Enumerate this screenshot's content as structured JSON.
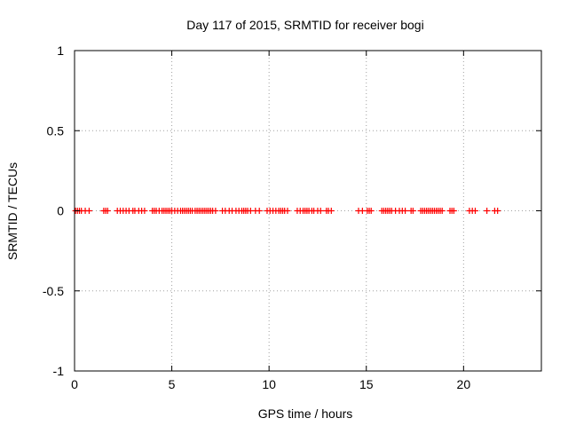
{
  "chart_data": {
    "type": "scatter",
    "title": "Day 117 of 2015, SRMTID for receiver bogi",
    "xlabel": "GPS time / hours",
    "ylabel": "SRMTID / TECUs",
    "xlim": [
      0,
      24
    ],
    "ylim": [
      -1,
      1
    ],
    "xticks": [
      0,
      5,
      10,
      15,
      20
    ],
    "yticks": [
      -1,
      -0.5,
      0,
      0.5,
      1
    ],
    "xtick_labels": [
      "0",
      "5",
      "10",
      "15",
      "20"
    ],
    "ytick_labels": [
      "-1",
      "-0.5",
      "0",
      "0.5",
      "1"
    ],
    "grid": true,
    "marker": "+",
    "series": [
      {
        "name": "SRMTID",
        "color": "#ff0000",
        "points": [
          [
            0.05,
            0
          ],
          [
            0.15,
            0
          ],
          [
            0.25,
            0
          ],
          [
            0.35,
            0
          ],
          [
            0.55,
            0
          ],
          [
            0.75,
            0
          ],
          [
            1.5,
            0
          ],
          [
            1.6,
            0
          ],
          [
            1.7,
            0
          ],
          [
            2.2,
            0
          ],
          [
            2.35,
            0
          ],
          [
            2.5,
            0
          ],
          [
            2.65,
            0
          ],
          [
            2.8,
            0
          ],
          [
            3.0,
            0
          ],
          [
            3.1,
            0
          ],
          [
            3.3,
            0
          ],
          [
            3.45,
            0
          ],
          [
            3.6,
            0
          ],
          [
            4.0,
            0
          ],
          [
            4.1,
            0
          ],
          [
            4.2,
            0
          ],
          [
            4.35,
            0
          ],
          [
            4.5,
            0
          ],
          [
            4.6,
            0
          ],
          [
            4.7,
            0
          ],
          [
            4.8,
            0
          ],
          [
            4.9,
            0
          ],
          [
            5.0,
            0
          ],
          [
            5.15,
            0
          ],
          [
            5.3,
            0
          ],
          [
            5.45,
            0
          ],
          [
            5.55,
            0
          ],
          [
            5.65,
            0
          ],
          [
            5.75,
            0
          ],
          [
            5.85,
            0
          ],
          [
            5.95,
            0
          ],
          [
            6.05,
            0
          ],
          [
            6.2,
            0
          ],
          [
            6.3,
            0
          ],
          [
            6.4,
            0
          ],
          [
            6.5,
            0
          ],
          [
            6.6,
            0
          ],
          [
            6.7,
            0
          ],
          [
            6.8,
            0
          ],
          [
            6.9,
            0
          ],
          [
            7.0,
            0
          ],
          [
            7.1,
            0
          ],
          [
            7.25,
            0
          ],
          [
            7.6,
            0
          ],
          [
            7.75,
            0
          ],
          [
            7.95,
            0
          ],
          [
            8.1,
            0
          ],
          [
            8.3,
            0
          ],
          [
            8.45,
            0
          ],
          [
            8.6,
            0
          ],
          [
            8.7,
            0
          ],
          [
            8.8,
            0
          ],
          [
            8.9,
            0
          ],
          [
            9.05,
            0
          ],
          [
            9.3,
            0
          ],
          [
            9.5,
            0
          ],
          [
            9.9,
            0
          ],
          [
            10.05,
            0
          ],
          [
            10.2,
            0
          ],
          [
            10.35,
            0
          ],
          [
            10.5,
            0
          ],
          [
            10.6,
            0
          ],
          [
            10.7,
            0
          ],
          [
            10.8,
            0
          ],
          [
            10.95,
            0
          ],
          [
            11.45,
            0
          ],
          [
            11.6,
            0
          ],
          [
            11.75,
            0
          ],
          [
            11.85,
            0
          ],
          [
            11.95,
            0
          ],
          [
            12.05,
            0
          ],
          [
            12.2,
            0
          ],
          [
            12.3,
            0
          ],
          [
            12.5,
            0
          ],
          [
            12.65,
            0
          ],
          [
            12.95,
            0
          ],
          [
            13.05,
            0
          ],
          [
            13.2,
            0
          ],
          [
            14.6,
            0
          ],
          [
            14.8,
            0
          ],
          [
            15.05,
            0
          ],
          [
            15.15,
            0
          ],
          [
            15.25,
            0
          ],
          [
            15.8,
            0
          ],
          [
            15.9,
            0
          ],
          [
            16.0,
            0
          ],
          [
            16.1,
            0
          ],
          [
            16.2,
            0
          ],
          [
            16.3,
            0
          ],
          [
            16.5,
            0
          ],
          [
            16.7,
            0
          ],
          [
            16.85,
            0
          ],
          [
            17.0,
            0
          ],
          [
            17.3,
            0
          ],
          [
            17.4,
            0
          ],
          [
            17.8,
            0
          ],
          [
            17.9,
            0
          ],
          [
            18.0,
            0
          ],
          [
            18.1,
            0
          ],
          [
            18.2,
            0
          ],
          [
            18.3,
            0
          ],
          [
            18.4,
            0
          ],
          [
            18.5,
            0
          ],
          [
            18.6,
            0
          ],
          [
            18.7,
            0
          ],
          [
            18.8,
            0
          ],
          [
            18.9,
            0
          ],
          [
            19.3,
            0
          ],
          [
            19.4,
            0
          ],
          [
            19.5,
            0
          ],
          [
            20.3,
            0
          ],
          [
            20.45,
            0
          ],
          [
            20.6,
            0
          ],
          [
            21.2,
            0
          ],
          [
            21.6,
            0
          ],
          [
            21.75,
            0
          ]
        ]
      }
    ]
  }
}
